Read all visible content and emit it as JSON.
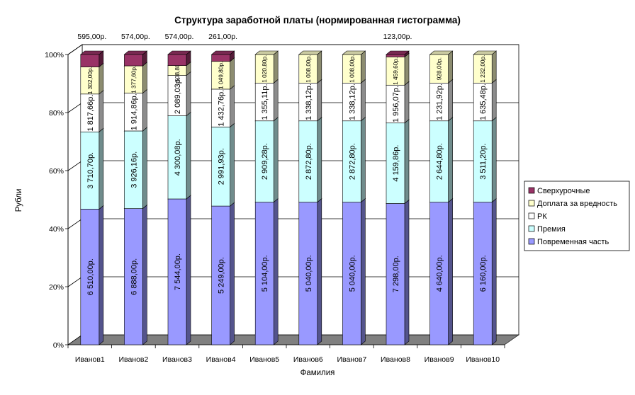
{
  "chart_data": {
    "type": "bar",
    "stacked": "percent",
    "three_d": true,
    "title": "Структура заработной платы (нормированная гистограмма)",
    "xlabel": "Фамилия",
    "ylabel": "Рубли",
    "categories": [
      "Иванов1",
      "Иванов2",
      "Иванов3",
      "Иванов4",
      "Иванов5",
      "Иванов6",
      "Иванов7",
      "Иванов8",
      "Иванов9",
      "Иванов10"
    ],
    "y_ticks": [
      "0%",
      "20%",
      "40%",
      "60%",
      "80%",
      "100%"
    ],
    "ylim": [
      0,
      100
    ],
    "legend_position": "right",
    "series": [
      {
        "name": "Повременная часть",
        "color": "#9999ff",
        "values": [
          6510.0,
          6888.0,
          7544.0,
          5249.0,
          5104.0,
          5040.0,
          5040.0,
          7298.0,
          4640.0,
          6160.0
        ],
        "labels": [
          "6 510,00р.",
          "6 888,00р.",
          "7 544,00р.",
          "5 249,00р.",
          "5 104,00р.",
          "5 040,00р.",
          "5 040,00р.",
          "7 298,00р.",
          "4 640,00р.",
          "6 160,00р."
        ]
      },
      {
        "name": "Премия",
        "color": "#ccffff",
        "values": [
          3710.7,
          3926.16,
          4300.08,
          2991.93,
          2909.28,
          2872.8,
          2872.8,
          4159.86,
          2644.8,
          3511.2
        ],
        "labels": [
          "3 710,70р.",
          "3 926,16р.",
          "4 300,08р.",
          "2 991,93р.",
          "2 909,28р.",
          "2 872,80р.",
          "2 872,80р.",
          "4 159,86р.",
          "2 644,80р.",
          "3 511,20р."
        ]
      },
      {
        "name": "РК",
        "color": "#ffffff",
        "values": [
          1817.66,
          1914.86,
          2089.03,
          1432.76,
          1355.11,
          1338.12,
          1338.12,
          1956.07,
          1231.92,
          1635.48
        ],
        "labels": [
          "1 817,66р.",
          "1 914,86р.",
          "2 089,03р.",
          "1 432,76р.",
          "1 355,11р.",
          "1 338,12р.",
          "1 338,12р.",
          "1 956,07р.",
          "1 231,92р.",
          "1 635,48р."
        ]
      },
      {
        "name": "Доплата за вредность",
        "color": "#ffffcc",
        "values": [
          1302.0,
          1377.6,
          508.8,
          1049.8,
          1020.8,
          1008.0,
          1008.0,
          1459.6,
          928.0,
          1232.0
        ],
        "labels": [
          "1 302,00р.",
          "1 377,60р.",
          "508,80р.",
          "1 049,80р.",
          "1 020,80р.",
          "1 008,00р.",
          "1 008,00р.",
          "1 459,60р.",
          "928,00р.",
          "1 232,00р."
        ]
      },
      {
        "name": "Сверхурочные",
        "color": "#993366",
        "values": [
          595.0,
          574.0,
          574.0,
          261.0,
          0,
          0,
          0,
          123.0,
          0,
          0
        ],
        "labels": [
          "595,00р.",
          "574,00р.",
          "574,00р.",
          "261,00р.",
          "",
          "",
          "",
          "123,00р.",
          "",
          ""
        ]
      }
    ]
  }
}
